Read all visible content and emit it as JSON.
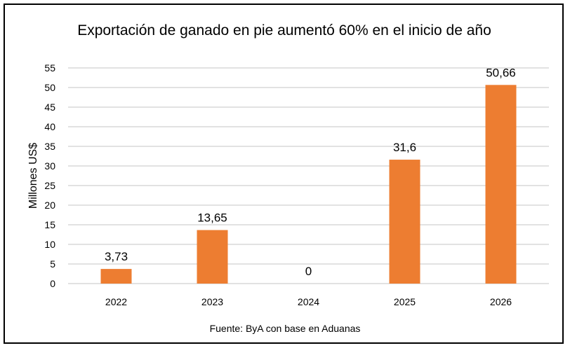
{
  "chart_data": {
    "type": "bar",
    "title": "Exportación de ganado en pie aumentó 60% en el inicio de año",
    "xlabel": "",
    "ylabel": "Millones US$",
    "categories": [
      "2022",
      "2023",
      "2024",
      "2025",
      "2026"
    ],
    "values": [
      3.73,
      13.65,
      0,
      31.6,
      50.66
    ],
    "data_labels": [
      "3,73",
      "13,65",
      "0",
      "31,6",
      "50,66"
    ],
    "ylim": [
      0,
      55
    ],
    "yticks": [
      0,
      5,
      10,
      15,
      20,
      25,
      30,
      35,
      40,
      45,
      50,
      55
    ],
    "grid": true,
    "legend": "none",
    "bar_color": "#ED7D31",
    "grid_color": "#D9D9D9",
    "source": "Fuente: ByA con base en Aduanas"
  }
}
